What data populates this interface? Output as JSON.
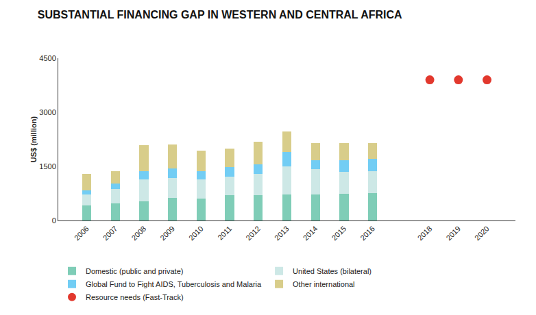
{
  "chart_data": {
    "type": "bar",
    "title": "SUBSTANTIAL FINANCING GAP IN WESTERN AND CENTRAL AFRICA",
    "y_label": "US$ (million)",
    "categories": [
      "2006",
      "2007",
      "2008",
      "2009",
      "2010",
      "2011",
      "2012",
      "2013",
      "2014",
      "2015",
      "2016",
      null,
      "2018",
      "2019",
      "2020"
    ],
    "stacked": true,
    "grid": false,
    "legend": "bottom",
    "ylim": [
      0,
      4500
    ],
    "yticks": [
      0,
      1500,
      3000,
      4500
    ],
    "series": [
      {
        "name": "Domestic (public and private)",
        "color": "#7fcdb7",
        "type": "bar",
        "values": [
          410,
          480,
          540,
          630,
          615,
          705,
          705,
          725,
          725,
          745,
          765,
          null,
          null,
          null,
          null
        ]
      },
      {
        "name": "United States (bilateral)",
        "color": "#cde8e6",
        "type": "bar",
        "values": [
          320,
          395,
          595,
          540,
          520,
          505,
          580,
          780,
          705,
          595,
          610,
          null,
          null,
          null,
          null
        ]
      },
      {
        "name": "Global Fund to Fight AIDS, Tuberculosis and Malaria",
        "color": "#72cdf4",
        "type": "bar",
        "values": [
          110,
          145,
          225,
          280,
          225,
          280,
          275,
          390,
          245,
          335,
          335,
          null,
          null,
          null,
          null
        ]
      },
      {
        "name": "Other international",
        "color": "#d8cd8a",
        "type": "bar",
        "values": [
          445,
          355,
          720,
          650,
          575,
          500,
          615,
          580,
          465,
          465,
          430,
          null,
          null,
          null,
          null
        ]
      },
      {
        "name": "Resource needs (Fast-Track)",
        "color": "#e2382d",
        "type": "scatter",
        "marker": "circle",
        "values": [
          null,
          null,
          null,
          null,
          null,
          null,
          null,
          null,
          null,
          null,
          null,
          null,
          3900,
          3900,
          3900
        ]
      }
    ]
  }
}
